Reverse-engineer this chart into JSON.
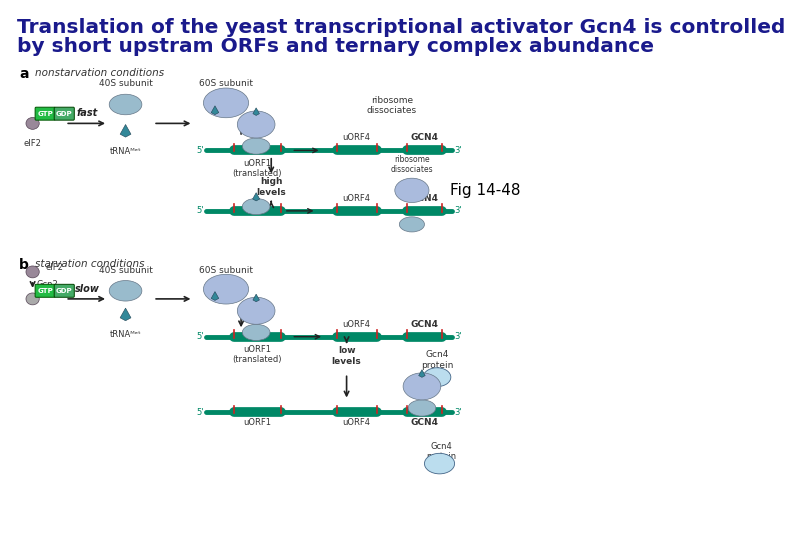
{
  "title_line1": "Translation of the yeast transcriptional activator Gcn4 is controlled",
  "title_line2": "by short upstram ORFs and ternary complex abundance",
  "title_color": "#1a1a8c",
  "title_fontsize": 14.5,
  "fig_label": "Fig 14-48",
  "fig_label_color": "#000000",
  "fig_label_fontsize": 11,
  "background_color": "#ffffff",
  "panel_a_label": "a",
  "panel_b_label": "b",
  "panel_a_title": "nonstarvation conditions",
  "panel_b_title": "starvation conditions",
  "subunit_40s": "40S subunit",
  "subunit_60s": "60S subunit",
  "eif2_label": "eIF2",
  "gcn2_label": "Gcn2",
  "trna_label": "tRNAᴹᵉᵗ",
  "fast_label": "fast",
  "slow_label": "slow",
  "uorf1_label": "uORF1\n(translated)",
  "uorf4_label": "uORF4",
  "gcn4_label": "GCN4",
  "high_levels_label": "high\nlevels",
  "low_levels_label": "low\nlevels",
  "ribosome_dissociates": "ribosome\ndissociates",
  "gcn4_protein": "Gcn4\nprotein",
  "gtp_color": "#22bb44",
  "gdp_color": "#44aa66",
  "mrna_color": "#008866",
  "ribosome_40s_color": "#99bbcc",
  "ribosome_60s_color": "#aabbdd",
  "arrow_color": "#222222",
  "red_marker_color": "#cc2222",
  "panel_label_fontsize": 10,
  "eif2_color": "#998899",
  "trna_color": "#338899"
}
